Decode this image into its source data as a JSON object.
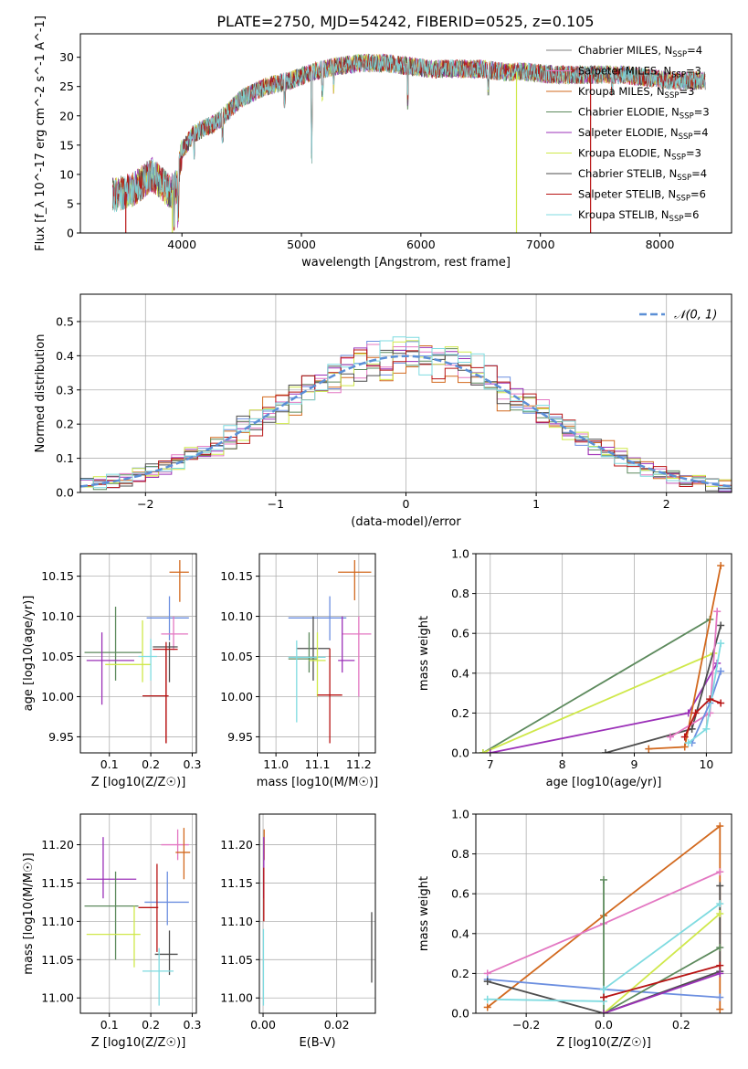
{
  "figure": {
    "title": "PLATE=2750, MJD=54242, FIBERID=0525, z=0.105"
  },
  "colors": {
    "Chabrier MILES": "#7f7f7f",
    "Salpeter MILES": "#e377c2",
    "Kroupa MILES": "#d2691e",
    "Chabrier ELODIE": "#5d8a5d",
    "Salpeter ELODIE": "#9b30b8",
    "Kroupa ELODIE": "#cfe84a",
    "Chabrier STELIB": "#4d4d4d",
    "Salpeter STELIB": "#b81414",
    "Kroupa STELIB": "#7fdbe0",
    "MILES blue": "#6c8fe0",
    "normal": "#5b8fd6",
    "grid": "#b0b0b0"
  },
  "chart_data": [
    {
      "id": "spectrum",
      "type": "line",
      "xlabel": "wavelength [Angstrom, rest frame]",
      "ylabel": "Flux [f_λ 10^-17 erg cm^-2 s^-1 A^-1]",
      "xlim": [
        3150,
        8600
      ],
      "ylim": [
        0,
        34
      ],
      "xticks": [
        4000,
        5000,
        6000,
        7000,
        8000
      ],
      "yticks": [
        0,
        5,
        10,
        15,
        20,
        25,
        30
      ],
      "grid": false,
      "legend_placement": "top-right",
      "series": [
        {
          "name": "Chabrier MILES, N_SSP=4",
          "color": "#7f7f7f"
        },
        {
          "name": "Salpeter MILES, N_SSP=3",
          "color": "#e377c2"
        },
        {
          "name": "Kroupa MILES, N_SSP=3",
          "color": "#d2691e"
        },
        {
          "name": "Chabrier ELODIE, N_SSP=3",
          "color": "#5d8a5d"
        },
        {
          "name": "Salpeter ELODIE, N_SSP=4",
          "color": "#9b30b8"
        },
        {
          "name": "Kroupa ELODIE, N_SSP=3",
          "color": "#cfe84a"
        },
        {
          "name": "Chabrier STELIB, N_SSP=4",
          "color": "#4d4d4d"
        },
        {
          "name": "Salpeter STELIB, N_SSP=6",
          "color": "#b81414"
        },
        {
          "name": "Kroupa STELIB, N_SSP=6",
          "color": "#7fdbe0"
        }
      ],
      "continuum": {
        "x": [
          3450,
          3600,
          3750,
          3900,
          3960,
          4000,
          4100,
          4200,
          4300,
          4400,
          4500,
          4700,
          4900,
          5100,
          5300,
          5500,
          5700,
          5900,
          6100,
          6300,
          6500,
          6700,
          6900,
          7100,
          7300,
          7500,
          7700,
          7900,
          8100,
          8300
        ],
        "y": [
          6.5,
          7.5,
          10,
          7,
          8,
          14,
          17,
          18,
          19,
          21,
          23,
          25,
          26,
          27.5,
          28.5,
          29,
          29,
          28.5,
          28,
          28,
          28,
          27.5,
          27.5,
          27,
          27,
          27,
          27,
          26.5,
          26,
          26
        ]
      },
      "drops": [
        {
          "x": 3530,
          "series": "Salpeter STELIB, N_SSP=6"
        },
        {
          "x": 3920,
          "series": "Kroupa ELODIE, N_SSP=3"
        },
        {
          "x": 6800,
          "series": "Kroupa ELODIE, N_SSP=3"
        },
        {
          "x": 7420,
          "series": "Salpeter STELIB, N_SSP=6"
        }
      ]
    },
    {
      "id": "residuals",
      "type": "line",
      "xlabel": "(data-model)/error",
      "ylabel": "Normed distribution",
      "xlim": [
        -2.5,
        2.5
      ],
      "ylim": [
        0,
        0.58
      ],
      "xticks": [
        -2,
        -1,
        0,
        1,
        2
      ],
      "yticks": [
        0.0,
        0.1,
        0.2,
        0.3,
        0.4,
        0.5
      ],
      "grid": true,
      "legend_placement": "top-right",
      "legend": [
        "𝒩(0, 1)"
      ],
      "normal": {
        "mu": 0,
        "sigma": 1
      },
      "hist_bin_width": 0.1,
      "hist_colors": [
        "#6c8fe0",
        "#e377c2",
        "#d2691e",
        "#5d8a5d",
        "#9b30b8",
        "#cfe84a",
        "#4d4d4d",
        "#b81414",
        "#7fdbe0"
      ]
    },
    {
      "id": "age-vs-Z",
      "type": "scatter",
      "xlabel": "Z [log10(Z/Z☉)]",
      "ylabel": "age [log10(age/yr)]",
      "xlim": [
        0.03,
        0.31
      ],
      "ylim": [
        9.93,
        10.178
      ],
      "xticks": [
        0.1,
        0.2,
        0.3
      ],
      "yticks": [
        9.95,
        10.0,
        10.05,
        10.1,
        10.15
      ],
      "grid": true,
      "points": [
        {
          "x": 0.27,
          "y": 10.155,
          "xerr": [
            0.245,
            0.292
          ],
          "yerr": [
            10.118,
            10.17
          ],
          "color": "#d2691e"
        },
        {
          "x": 0.245,
          "y": 10.098,
          "xerr": [
            0.19,
            0.292
          ],
          "yerr": [
            10.07,
            10.125
          ],
          "color": "#6c8fe0"
        },
        {
          "x": 0.255,
          "y": 10.078,
          "xerr": [
            0.225,
            0.29
          ],
          "yerr": [
            10.058,
            10.1
          ],
          "color": "#e377c2"
        },
        {
          "x": 0.245,
          "y": 10.062,
          "xerr": [
            0.205,
            0.265
          ],
          "yerr": [
            10.018,
            10.068
          ],
          "color": "#4d4d4d"
        },
        {
          "x": 0.237,
          "y": 10.059,
          "xerr": [
            0.205,
            0.265
          ],
          "yerr": [
            9.942,
            10.068
          ],
          "color": "#b81414"
        },
        {
          "x": 0.115,
          "y": 10.055,
          "xerr": [
            0.04,
            0.178
          ],
          "yerr": [
            10.02,
            10.112
          ],
          "color": "#5d8a5d"
        },
        {
          "x": 0.082,
          "y": 10.045,
          "xerr": [
            0.045,
            0.16
          ],
          "yerr": [
            9.99,
            10.08
          ],
          "color": "#9b30b8"
        },
        {
          "x": 0.18,
          "y": 10.04,
          "xerr": [
            0.09,
            0.2
          ],
          "yerr": [
            10.018,
            10.095
          ],
          "color": "#cfe84a"
        },
        {
          "x": 0.2,
          "y": 10.05,
          "xerr": [
            0.17,
            0.215
          ],
          "yerr": [
            10.02,
            10.072
          ],
          "color": "#7fdbe0"
        },
        {
          "x": 0.237,
          "y": 10.001,
          "xerr": [
            0.18,
            0.243
          ],
          "yerr": [
            9.942,
            10.06
          ],
          "color": "#b81414"
        }
      ]
    },
    {
      "id": "age-vs-mass",
      "type": "scatter",
      "xlabel": "mass [log10(M/M☉)]",
      "ylabel": "",
      "xlim": [
        10.96,
        11.24
      ],
      "ylim": [
        9.93,
        10.178
      ],
      "xticks": [
        11.0,
        11.1,
        11.2
      ],
      "yticks": [
        9.95,
        10.0,
        10.05,
        10.1,
        10.15
      ],
      "grid": true,
      "points": [
        {
          "x": 11.19,
          "y": 10.155,
          "xerr": [
            11.15,
            11.23
          ],
          "yerr": [
            10.12,
            10.17
          ],
          "color": "#d2691e"
        },
        {
          "x": 11.13,
          "y": 10.098,
          "xerr": [
            11.03,
            11.17
          ],
          "yerr": [
            10.07,
            10.125
          ],
          "color": "#6c8fe0"
        },
        {
          "x": 11.2,
          "y": 10.078,
          "xerr": [
            11.16,
            11.23
          ],
          "yerr": [
            10.0,
            10.1
          ],
          "color": "#e377c2"
        },
        {
          "x": 11.09,
          "y": 10.06,
          "xerr": [
            11.05,
            11.13
          ],
          "yerr": [
            10.02,
            10.1
          ],
          "color": "#4d4d4d"
        },
        {
          "x": 11.16,
          "y": 10.045,
          "xerr": [
            11.15,
            11.19
          ],
          "yerr": [
            10.03,
            10.1
          ],
          "color": "#9b30b8"
        },
        {
          "x": 11.08,
          "y": 10.047,
          "xerr": [
            11.03,
            11.1
          ],
          "yerr": [
            10.03,
            10.08
          ],
          "color": "#5d8a5d"
        },
        {
          "x": 11.05,
          "y": 10.049,
          "xerr": [
            11.03,
            11.12
          ],
          "yerr": [
            9.968,
            10.07
          ],
          "color": "#7fdbe0"
        },
        {
          "x": 11.1,
          "y": 10.045,
          "xerr": [
            11.08,
            11.12
          ],
          "yerr": [
            10.0,
            10.08
          ],
          "color": "#cfe84a"
        },
        {
          "x": 11.13,
          "y": 10.002,
          "xerr": [
            11.1,
            11.16
          ],
          "yerr": [
            9.942,
            10.06
          ],
          "color": "#b81414"
        }
      ]
    },
    {
      "id": "weight-vs-age",
      "type": "line",
      "xlabel": "age [log10(age/yr)]",
      "ylabel": "mass weight",
      "xlim": [
        6.8,
        10.35
      ],
      "ylim": [
        0,
        1.0
      ],
      "xticks": [
        7,
        8,
        9,
        10
      ],
      "yticks": [
        0.0,
        0.2,
        0.4,
        0.6,
        0.8,
        1.0
      ],
      "grid": true,
      "series": [
        {
          "name": "Chabrier ELODIE",
          "color": "#5d8a5d",
          "x": [
            6.9,
            10.05
          ],
          "y": [
            0.0,
            0.67
          ]
        },
        {
          "name": "Kroupa ELODIE",
          "color": "#cfe84a",
          "x": [
            6.9,
            10.1
          ],
          "y": [
            0.0,
            0.5
          ]
        },
        {
          "name": "Salpeter ELODIE",
          "color": "#9b30b8",
          "x": [
            7.0,
            9.75,
            10.15
          ],
          "y": [
            0.0,
            0.2,
            0.45
          ]
        },
        {
          "name": "Chabrier STELIB",
          "color": "#4d4d4d",
          "x": [
            8.6,
            9.8,
            10.2
          ],
          "y": [
            0.0,
            0.12,
            0.64
          ]
        },
        {
          "name": "Kroupa MILES",
          "color": "#d2691e",
          "x": [
            9.2,
            9.7,
            10.2
          ],
          "y": [
            0.02,
            0.03,
            0.94
          ]
        },
        {
          "name": "Salpeter MILES",
          "color": "#e377c2",
          "x": [
            9.5,
            10.05,
            10.15
          ],
          "y": [
            0.08,
            0.2,
            0.71
          ]
        },
        {
          "name": "Chabrier MILES",
          "color": "#6c8fe0",
          "x": [
            9.8,
            10.05,
            10.2
          ],
          "y": [
            0.05,
            0.25,
            0.41
          ]
        },
        {
          "name": "Kroupa STELIB",
          "color": "#7fdbe0",
          "x": [
            9.75,
            10.0,
            10.2
          ],
          "y": [
            0.05,
            0.12,
            0.55
          ]
        },
        {
          "name": "Salpeter STELIB",
          "color": "#b81414",
          "x": [
            9.7,
            9.85,
            10.05,
            10.2
          ],
          "y": [
            0.08,
            0.2,
            0.27,
            0.25
          ]
        }
      ]
    },
    {
      "id": "mass-vs-Z",
      "type": "scatter",
      "xlabel": "Z [log10(Z/Z☉)]",
      "ylabel": "mass [log10(M/M☉)]",
      "xlim": [
        0.03,
        0.31
      ],
      "ylim": [
        10.98,
        11.24
      ],
      "xticks": [
        0.1,
        0.2,
        0.3
      ],
      "yticks": [
        11.0,
        11.05,
        11.1,
        11.15,
        11.2
      ],
      "grid": true,
      "points": [
        {
          "x": 0.265,
          "y": 11.2,
          "xerr": [
            0.225,
            0.292
          ],
          "yerr": [
            11.18,
            11.22
          ],
          "color": "#e377c2"
        },
        {
          "x": 0.28,
          "y": 11.19,
          "xerr": [
            0.26,
            0.295
          ],
          "yerr": [
            11.155,
            11.222
          ],
          "color": "#d2691e"
        },
        {
          "x": 0.085,
          "y": 11.155,
          "xerr": [
            0.045,
            0.165
          ],
          "yerr": [
            11.13,
            11.21
          ],
          "color": "#9b30b8"
        },
        {
          "x": 0.24,
          "y": 11.125,
          "xerr": [
            0.185,
            0.292
          ],
          "yerr": [
            11.095,
            11.165
          ],
          "color": "#6c8fe0"
        },
        {
          "x": 0.115,
          "y": 11.12,
          "xerr": [
            0.04,
            0.17
          ],
          "yerr": [
            11.05,
            11.165
          ],
          "color": "#5d8a5d"
        },
        {
          "x": 0.215,
          "y": 11.118,
          "xerr": [
            0.17,
            0.218
          ],
          "yerr": [
            11.06,
            11.175
          ],
          "color": "#b81414"
        },
        {
          "x": 0.16,
          "y": 11.083,
          "xerr": [
            0.045,
            0.175
          ],
          "yerr": [
            11.04,
            11.12
          ],
          "color": "#cfe84a"
        },
        {
          "x": 0.245,
          "y": 11.057,
          "xerr": [
            0.21,
            0.265
          ],
          "yerr": [
            11.03,
            11.088
          ],
          "color": "#4d4d4d"
        },
        {
          "x": 0.22,
          "y": 11.035,
          "xerr": [
            0.18,
            0.255
          ],
          "yerr": [
            10.99,
            11.065
          ],
          "color": "#7fdbe0"
        }
      ]
    },
    {
      "id": "mass-vs-EBV",
      "type": "scatter",
      "xlabel": "E(B-V)",
      "ylabel": "",
      "xlim": [
        -0.001,
        0.0305
      ],
      "ylim": [
        10.98,
        11.24
      ],
      "xticks": [
        0.0,
        0.02
      ],
      "yticks": [
        11.0,
        11.05,
        11.1,
        11.15,
        11.2
      ],
      "grid": true,
      "points": [
        {
          "x": 0.0003,
          "y": 11.2,
          "yerr": [
            11.18,
            11.22
          ],
          "color": "#d2691e"
        },
        {
          "x": 0.0002,
          "y": 11.17,
          "yerr": [
            11.13,
            11.21
          ],
          "color": "#9b30b8"
        },
        {
          "x": 0.0002,
          "y": 11.15,
          "yerr": [
            11.1,
            11.17
          ],
          "color": "#b81414"
        },
        {
          "x": 0.0001,
          "y": 11.06,
          "yerr": [
            10.99,
            11.09
          ],
          "color": "#7fdbe0"
        },
        {
          "x": 0.0295,
          "y": 11.065,
          "yerr": [
            11.02,
            11.112
          ],
          "color": "#4d4d4d"
        }
      ]
    },
    {
      "id": "weight-vs-Z",
      "type": "line",
      "xlabel": "Z [log10(Z/Z☉)]",
      "ylabel": "mass weight",
      "xlim": [
        -0.33,
        0.33
      ],
      "ylim": [
        0,
        1.0
      ],
      "xticks": [
        -0.2,
        0.0,
        0.2
      ],
      "yticks": [
        0.0,
        0.2,
        0.4,
        0.6,
        0.8,
        1.0
      ],
      "grid": true,
      "series": [
        {
          "name": "Kroupa MILES",
          "color": "#d2691e",
          "x": [
            -0.3,
            0.0,
            0.3,
            0.3
          ],
          "y": [
            0.03,
            0.49,
            0.94,
            0.02
          ]
        },
        {
          "name": "Salpeter MILES",
          "color": "#e377c2",
          "x": [
            -0.3,
            0.0,
            0.3
          ],
          "y": [
            0.2,
            0.45,
            0.71
          ]
        },
        {
          "name": "Chabrier MILES",
          "color": "#6c8fe0",
          "x": [
            -0.3,
            0.0,
            0.3
          ],
          "y": [
            0.17,
            0.12,
            0.08
          ]
        },
        {
          "name": "Chabrier STELIB",
          "color": "#4d4d4d",
          "x": [
            -0.3,
            0.0,
            0.3,
            0.3
          ],
          "y": [
            0.16,
            0.0,
            0.21,
            0.64
          ]
        },
        {
          "name": "Chabrier ELODIE",
          "color": "#5d8a5d",
          "x": [
            0.0,
            0.0,
            0.3
          ],
          "y": [
            0.67,
            0.0,
            0.33
          ]
        },
        {
          "name": "Kroupa ELODIE",
          "color": "#cfe84a",
          "x": [
            0.0,
            0.3
          ],
          "y": [
            0.0,
            0.5
          ]
        },
        {
          "name": "Salpeter ELODIE",
          "color": "#9b30b8",
          "x": [
            0.0,
            0.3
          ],
          "y": [
            0.0,
            0.2
          ]
        },
        {
          "name": "Kroupa STELIB",
          "color": "#7fdbe0",
          "x": [
            -0.3,
            0.0,
            0.0,
            0.3
          ],
          "y": [
            0.07,
            0.06,
            0.12,
            0.55
          ]
        },
        {
          "name": "Salpeter STELIB",
          "color": "#b81414",
          "x": [
            0.0,
            0.3
          ],
          "y": [
            0.08,
            0.24
          ]
        }
      ]
    }
  ]
}
